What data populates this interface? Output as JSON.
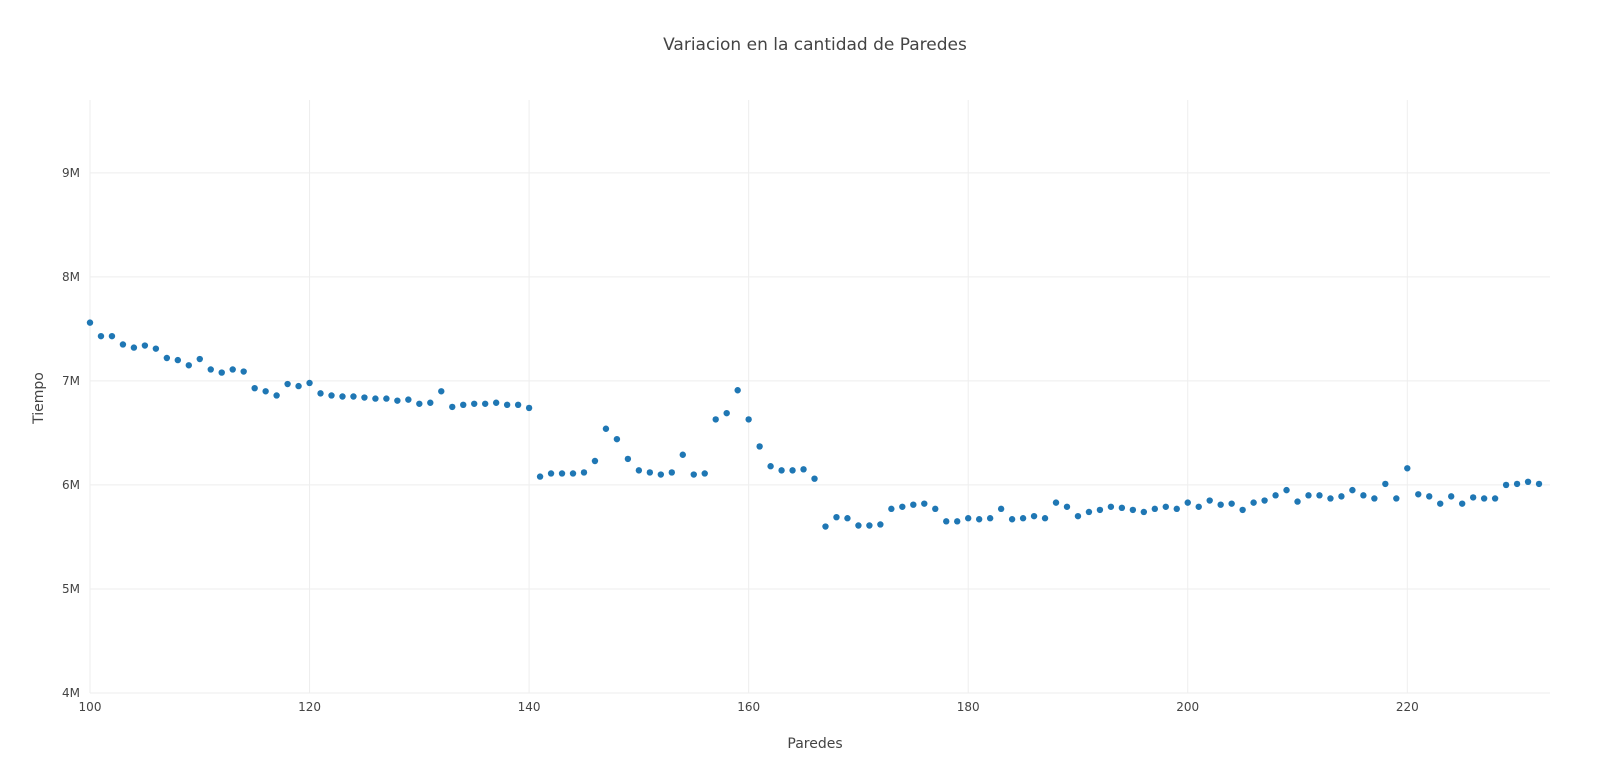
{
  "chart_data": {
    "type": "scatter",
    "title": "Variacion en la cantidad de Paredes",
    "xlabel": "Paredes",
    "ylabel": "Tiempo",
    "xlim": [
      100,
      233
    ],
    "ylim": [
      4000000,
      9700000
    ],
    "x_ticks": [
      100,
      120,
      140,
      160,
      180,
      200,
      220
    ],
    "x_tick_labels": [
      "100",
      "120",
      "140",
      "160",
      "180",
      "200",
      "220"
    ],
    "y_ticks": [
      4000000,
      5000000,
      6000000,
      7000000,
      8000000,
      9000000
    ],
    "y_tick_labels": [
      "4M",
      "5M",
      "6M",
      "7M",
      "8M",
      "9M"
    ],
    "grid": true,
    "legend": "none",
    "marker_color": "#1f77b4",
    "x": [
      100,
      101,
      102,
      103,
      104,
      105,
      106,
      107,
      108,
      109,
      110,
      111,
      112,
      113,
      114,
      115,
      116,
      117,
      118,
      119,
      120,
      121,
      122,
      123,
      124,
      125,
      126,
      127,
      128,
      129,
      130,
      131,
      132,
      133,
      134,
      135,
      136,
      137,
      138,
      139,
      140,
      141,
      142,
      143,
      144,
      145,
      146,
      147,
      148,
      149,
      150,
      151,
      152,
      153,
      154,
      155,
      156,
      157,
      158,
      159,
      160,
      161,
      162,
      163,
      164,
      165,
      166,
      167,
      168,
      169,
      170,
      171,
      172,
      173,
      174,
      175,
      176,
      177,
      178,
      179,
      180,
      181,
      182,
      183,
      184,
      185,
      186,
      187,
      188,
      189,
      190,
      191,
      192,
      193,
      194,
      195,
      196,
      197,
      198,
      199,
      200,
      201,
      202,
      203,
      204,
      205,
      206,
      207,
      208,
      209,
      210,
      211,
      212,
      213,
      214,
      215,
      216,
      217,
      218,
      219,
      220,
      221,
      222,
      223,
      224,
      225,
      226,
      227,
      228,
      229,
      230,
      231,
      232
    ],
    "y": [
      7560000,
      7430000,
      7430000,
      7350000,
      7320000,
      7340000,
      7310000,
      7220000,
      7200000,
      7150000,
      7210000,
      7110000,
      7080000,
      7110000,
      7090000,
      6930000,
      6900000,
      6860000,
      6970000,
      6950000,
      6980000,
      6880000,
      6860000,
      6850000,
      6850000,
      6840000,
      6830000,
      6830000,
      6810000,
      6820000,
      6780000,
      6790000,
      6900000,
      6750000,
      6770000,
      6780000,
      6780000,
      6790000,
      6770000,
      6770000,
      6740000,
      6080000,
      6110000,
      6110000,
      6110000,
      6120000,
      6230000,
      6540000,
      6440000,
      6250000,
      6140000,
      6120000,
      6100000,
      6120000,
      6290000,
      6100000,
      6110000,
      6630000,
      6690000,
      6910000,
      6630000,
      6370000,
      6180000,
      6140000,
      6140000,
      6150000,
      6060000,
      5600000,
      5690000,
      5680000,
      5610000,
      5610000,
      5620000,
      5770000,
      5790000,
      5810000,
      5820000,
      5770000,
      5650000,
      5650000,
      5680000,
      5670000,
      5680000,
      5770000,
      5670000,
      5680000,
      5700000,
      5680000,
      5830000,
      5790000,
      5700000,
      5740000,
      5760000,
      5790000,
      5780000,
      5760000,
      5740000,
      5770000,
      5790000,
      5770000,
      5830000,
      5790000,
      5850000,
      5810000,
      5820000,
      5760000,
      5830000,
      5850000,
      5900000,
      5950000,
      5840000,
      5900000,
      5900000,
      5870000,
      5890000,
      5950000,
      5900000,
      5870000,
      6010000,
      5870000,
      6160000,
      5910000,
      5890000,
      5820000,
      5890000,
      5820000,
      5880000,
      5870000,
      5870000,
      6000000,
      6010000,
      6030000,
      6010000
    ]
  }
}
